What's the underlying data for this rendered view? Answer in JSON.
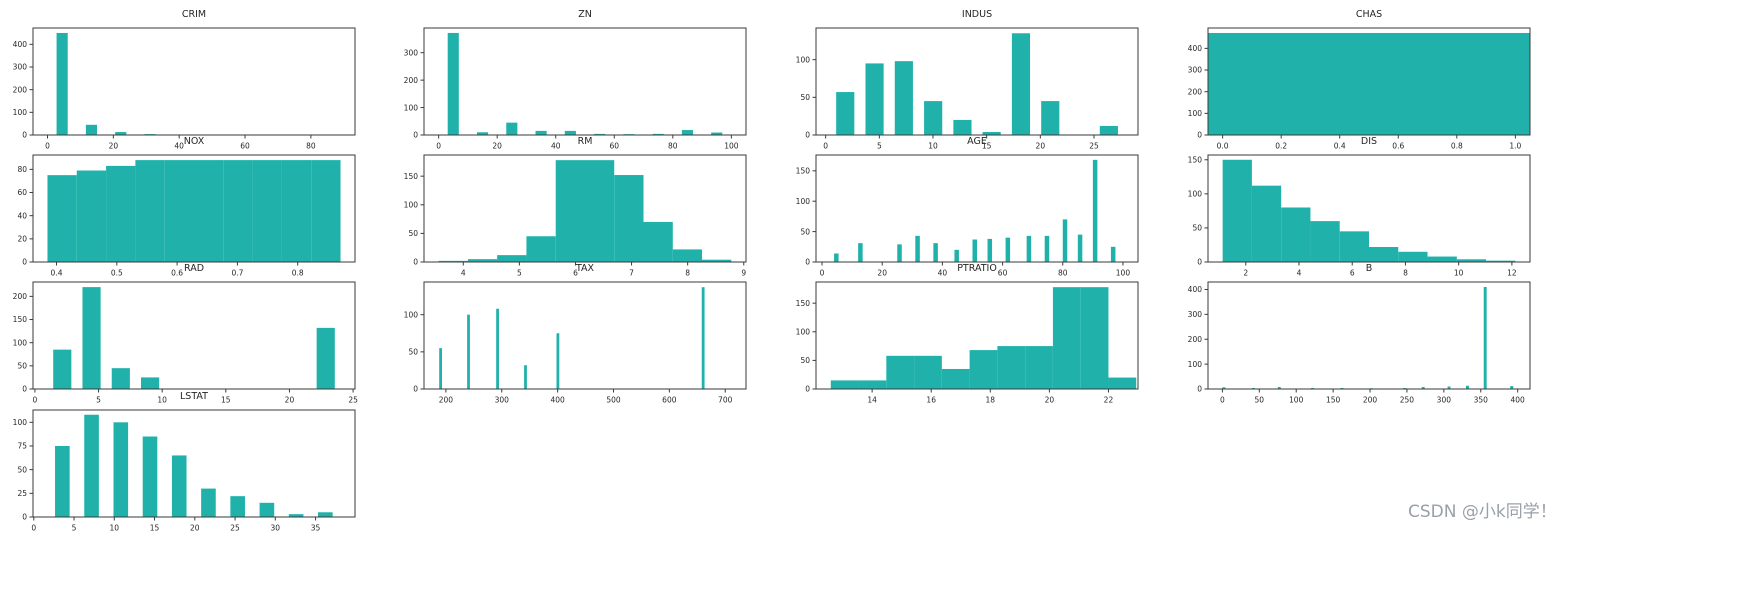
{
  "figure": {
    "background": "#ffffff"
  },
  "style": {
    "bar_color": "#20b2aa",
    "axis_color": "#3a3a3a",
    "text_color": "#262626"
  },
  "watermark": {
    "text": "CSDN @小k同学！",
    "color": "#9aa0aa"
  },
  "chart_data": [
    {
      "type": "bar",
      "subtype": "histogram",
      "title": "CRIM",
      "xlim": [
        -4.4,
        93.4
      ],
      "ylim": [
        0,
        472
      ],
      "xticks": [
        0,
        20,
        40,
        60,
        80
      ],
      "xtick_labels": [
        "0",
        "20",
        "40",
        "60",
        "80"
      ],
      "yticks": [
        0,
        100,
        200,
        300,
        400
      ],
      "ytick_labels": [
        "0",
        "100",
        "200",
        "300",
        "400"
      ],
      "bin_width": 8.9,
      "bar_width_frac": 0.38,
      "grid": false,
      "bars": [
        [
          0,
          450
        ],
        [
          8.9,
          45
        ],
        [
          17.8,
          13
        ],
        [
          26.7,
          4
        ],
        [
          35.6,
          2
        ],
        [
          44.5,
          2
        ],
        [
          53.4,
          1
        ],
        [
          62.3,
          1
        ],
        [
          71.2,
          0
        ],
        [
          80.1,
          1
        ]
      ]
    },
    {
      "type": "bar",
      "subtype": "histogram",
      "title": "ZN",
      "xlim": [
        -5,
        105
      ],
      "ylim": [
        0,
        390
      ],
      "xticks": [
        0,
        20,
        40,
        60,
        80,
        100
      ],
      "xtick_labels": [
        "0",
        "20",
        "40",
        "60",
        "80",
        "100"
      ],
      "yticks": [
        0,
        100,
        200,
        300
      ],
      "ytick_labels": [
        "0",
        "100",
        "200",
        "300"
      ],
      "bin_width": 10,
      "bar_width_frac": 0.38,
      "grid": false,
      "bars": [
        [
          0,
          372
        ],
        [
          10,
          10
        ],
        [
          20,
          45
        ],
        [
          30,
          15
        ],
        [
          40,
          15
        ],
        [
          50,
          4
        ],
        [
          60,
          3
        ],
        [
          70,
          4
        ],
        [
          80,
          18
        ],
        [
          90,
          9
        ]
      ]
    },
    {
      "type": "bar",
      "subtype": "histogram",
      "title": "INDUS",
      "xlim": [
        -0.9,
        29.1
      ],
      "ylim": [
        0,
        142
      ],
      "xticks": [
        0,
        5,
        10,
        15,
        20,
        25
      ],
      "xtick_labels": [
        "0",
        "5",
        "10",
        "15",
        "20",
        "25"
      ],
      "yticks": [
        0,
        50,
        100
      ],
      "ytick_labels": [
        "0",
        "50",
        "100"
      ],
      "bin_width": 2.73,
      "bar_width_frac": 0.62,
      "grid": false,
      "bars": [
        [
          0.46,
          57
        ],
        [
          3.19,
          95
        ],
        [
          5.92,
          98
        ],
        [
          8.65,
          45
        ],
        [
          11.38,
          20
        ],
        [
          14.1,
          4
        ],
        [
          16.83,
          135
        ],
        [
          19.56,
          45
        ],
        [
          22.29,
          0
        ],
        [
          25.02,
          12
        ]
      ]
    },
    {
      "type": "bar",
      "subtype": "histogram",
      "title": "CHAS",
      "xlim": [
        -0.05,
        1.05
      ],
      "ylim": [
        0,
        494
      ],
      "xticks": [
        0,
        0.2,
        0.4,
        0.6,
        0.8,
        1
      ],
      "xtick_labels": [
        "0.0",
        "0.2",
        "0.4",
        "0.6",
        "0.8",
        "1.0"
      ],
      "yticks": [
        0,
        100,
        200,
        300,
        400
      ],
      "ytick_labels": [
        "0",
        "100",
        "200",
        "300",
        "400"
      ],
      "bin_width": 1.1,
      "bar_width_frac": 1,
      "grid": false,
      "bars": [
        [
          -0.05,
          471
        ]
      ]
    },
    {
      "type": "bar",
      "subtype": "histogram",
      "title": "NOX",
      "xlim": [
        0.361,
        0.895
      ],
      "ylim": [
        0,
        92.4
      ],
      "xticks": [
        0.4,
        0.5,
        0.6,
        0.7,
        0.8
      ],
      "xtick_labels": [
        "0.4",
        "0.5",
        "0.6",
        "0.7",
        "0.8"
      ],
      "yticks": [
        0,
        20,
        40,
        60,
        80
      ],
      "ytick_labels": [
        "0",
        "20",
        "40",
        "60",
        "80"
      ],
      "bin_width": 0.0486,
      "bar_width_frac": 1,
      "grid": false,
      "bars": [
        [
          0.385,
          75
        ],
        [
          0.4336,
          79
        ],
        [
          0.4822,
          83
        ],
        [
          0.5308,
          88
        ],
        [
          0.5794,
          88
        ],
        [
          0.628,
          88
        ],
        [
          0.6766,
          88
        ],
        [
          0.7252,
          88
        ],
        [
          0.7738,
          88
        ],
        [
          0.8224,
          88
        ]
      ]
    },
    {
      "type": "bar",
      "subtype": "histogram",
      "title": "RM",
      "xlim": [
        3.3,
        9.04
      ],
      "ylim": [
        0,
        187
      ],
      "xticks": [
        4,
        5,
        6,
        7,
        8,
        9
      ],
      "xtick_labels": [
        "4",
        "5",
        "6",
        "7",
        "8",
        "9"
      ],
      "yticks": [
        0,
        50,
        100,
        150
      ],
      "ytick_labels": [
        "0",
        "50",
        "100",
        "150"
      ],
      "bin_width": 0.522,
      "bar_width_frac": 1,
      "grid": false,
      "bars": [
        [
          3.561,
          2
        ],
        [
          4.083,
          5
        ],
        [
          4.604,
          12
        ],
        [
          5.126,
          45
        ],
        [
          5.648,
          178
        ],
        [
          6.169,
          178
        ],
        [
          6.691,
          152
        ],
        [
          7.213,
          70
        ],
        [
          7.734,
          22
        ],
        [
          8.256,
          4
        ]
      ]
    },
    {
      "type": "bar",
      "subtype": "histogram",
      "title": "AGE",
      "xlim": [
        -2,
        105
      ],
      "ylim": [
        0,
        176
      ],
      "xticks": [
        0,
        20,
        40,
        60,
        80,
        100
      ],
      "xtick_labels": [
        "0",
        "20",
        "40",
        "60",
        "80",
        "100"
      ],
      "yticks": [
        0,
        50,
        100,
        150
      ],
      "ytick_labels": [
        "0",
        "50",
        "100",
        "150"
      ],
      "bin_width": 1.5,
      "bar_width_frac": 1,
      "grid": false,
      "bars": [
        [
          4,
          14
        ],
        [
          12,
          31
        ],
        [
          25,
          29
        ],
        [
          31,
          43
        ],
        [
          37,
          31
        ],
        [
          44,
          20
        ],
        [
          50,
          37
        ],
        [
          55,
          38
        ],
        [
          61,
          40
        ],
        [
          68,
          43
        ],
        [
          74,
          43
        ],
        [
          80,
          70
        ],
        [
          85,
          45
        ],
        [
          90,
          168
        ],
        [
          96,
          25
        ]
      ]
    },
    {
      "type": "bar",
      "subtype": "histogram",
      "title": "DIS",
      "xlim": [
        0.58,
        12.68
      ],
      "ylim": [
        0,
        157
      ],
      "xticks": [
        2,
        4,
        6,
        8,
        10,
        12
      ],
      "xtick_labels": [
        "2",
        "4",
        "6",
        "8",
        "10",
        "12"
      ],
      "yticks": [
        0,
        50,
        100,
        150
      ],
      "ytick_labels": [
        "0",
        "50",
        "100",
        "150"
      ],
      "bin_width": 1.1,
      "bar_width_frac": 1,
      "grid": false,
      "bars": [
        [
          1.13,
          150
        ],
        [
          2.23,
          112
        ],
        [
          3.33,
          80
        ],
        [
          4.43,
          60
        ],
        [
          5.53,
          45
        ],
        [
          6.63,
          22
        ],
        [
          7.73,
          15
        ],
        [
          8.83,
          8
        ],
        [
          9.93,
          4
        ],
        [
          11.03,
          2
        ]
      ]
    },
    {
      "type": "bar",
      "subtype": "histogram",
      "title": "RAD",
      "xlim": [
        -0.15,
        25.15
      ],
      "ylim": [
        0,
        231
      ],
      "xticks": [
        0,
        5,
        10,
        15,
        20,
        25
      ],
      "xtick_labels": [
        "0",
        "5",
        "10",
        "15",
        "20",
        "25"
      ],
      "yticks": [
        0,
        50,
        100,
        150,
        200
      ],
      "ytick_labels": [
        "0",
        "50",
        "100",
        "150",
        "200"
      ],
      "bin_width": 2.3,
      "bar_width_frac": 0.62,
      "grid": false,
      "bars": [
        [
          1,
          85
        ],
        [
          3.3,
          220
        ],
        [
          5.6,
          45
        ],
        [
          7.9,
          25
        ],
        [
          21.7,
          132
        ]
      ]
    },
    {
      "type": "bar",
      "subtype": "histogram",
      "title": "TAX",
      "xlim": [
        160.8,
        737.2
      ],
      "ylim": [
        0,
        144
      ],
      "xticks": [
        200,
        300,
        400,
        500,
        600,
        700
      ],
      "xtick_labels": [
        "200",
        "300",
        "400",
        "500",
        "600",
        "700"
      ],
      "yticks": [
        0,
        50,
        100
      ],
      "ytick_labels": [
        "0",
        "50",
        "100"
      ],
      "bin_width": 5,
      "bar_width_frac": 1,
      "grid": false,
      "bars": [
        [
          188,
          55
        ],
        [
          238,
          100
        ],
        [
          290,
          108
        ],
        [
          340,
          32
        ],
        [
          398,
          75
        ],
        [
          658,
          137
        ]
      ]
    },
    {
      "type": "bar",
      "subtype": "histogram",
      "title": "PTRATIO",
      "xlim": [
        12.1,
        23.0
      ],
      "ylim": [
        0,
        187
      ],
      "xticks": [
        14,
        16,
        18,
        20,
        22
      ],
      "xtick_labels": [
        "14",
        "16",
        "18",
        "20",
        "22"
      ],
      "yticks": [
        0,
        50,
        100,
        150
      ],
      "ytick_labels": [
        "0",
        "50",
        "100",
        "150"
      ],
      "bin_width": 0.94,
      "bar_width_frac": 1,
      "grid": false,
      "bars": [
        [
          12.6,
          15
        ],
        [
          13.54,
          15
        ],
        [
          14.48,
          58
        ],
        [
          15.42,
          58
        ],
        [
          16.36,
          35
        ],
        [
          17.3,
          68
        ],
        [
          18.24,
          75
        ],
        [
          19.18,
          75
        ],
        [
          20.12,
          178
        ],
        [
          21.06,
          178
        ],
        [
          22.0,
          20
        ]
      ]
    },
    {
      "type": "bar",
      "subtype": "histogram",
      "title": "B",
      "xlim": [
        -19.5,
        416.7
      ],
      "ylim": [
        0,
        430
      ],
      "xticks": [
        0,
        50,
        100,
        150,
        200,
        250,
        300,
        350,
        400
      ],
      "xtick_labels": [
        "0",
        "50",
        "100",
        "150",
        "200",
        "250",
        "300",
        "350",
        "400"
      ],
      "yticks": [
        0,
        100,
        200,
        300,
        400
      ],
      "ytick_labels": [
        "0",
        "100",
        "200",
        "300",
        "400"
      ],
      "bin_width": 4,
      "bar_width_frac": 1,
      "grid": false,
      "bars": [
        [
          0,
          7
        ],
        [
          40,
          4
        ],
        [
          75,
          8
        ],
        [
          120,
          4
        ],
        [
          160,
          4
        ],
        [
          200,
          3
        ],
        [
          245,
          4
        ],
        [
          270,
          8
        ],
        [
          305,
          10
        ],
        [
          330,
          13
        ],
        [
          354,
          410
        ],
        [
          390,
          12
        ]
      ]
    },
    {
      "type": "bar",
      "subtype": "histogram",
      "title": "LSTAT",
      "xlim": [
        -0.1,
        39.9
      ],
      "ylim": [
        0,
        113
      ],
      "xticks": [
        0,
        5,
        10,
        15,
        20,
        25,
        30,
        35
      ],
      "xtick_labels": [
        "0",
        "5",
        "10",
        "15",
        "20",
        "25",
        "30",
        "35"
      ],
      "yticks": [
        0,
        25,
        50,
        75,
        100
      ],
      "ytick_labels": [
        "0",
        "25",
        "50",
        "75",
        "100"
      ],
      "bin_width": 3.63,
      "bar_width_frac": 0.5,
      "grid": false,
      "bars": [
        [
          1.73,
          75
        ],
        [
          5.36,
          108
        ],
        [
          8.99,
          100
        ],
        [
          12.62,
          85
        ],
        [
          16.25,
          65
        ],
        [
          19.88,
          30
        ],
        [
          23.51,
          22
        ],
        [
          27.14,
          15
        ],
        [
          30.77,
          3
        ],
        [
          34.4,
          5
        ]
      ]
    }
  ]
}
